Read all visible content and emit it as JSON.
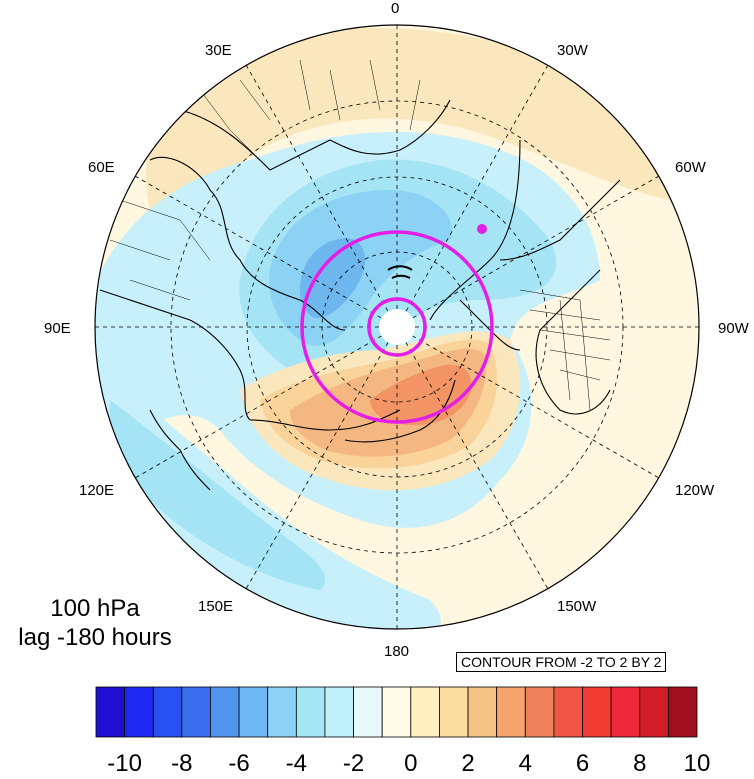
{
  "title": {
    "line1": "100 hPa",
    "line2": "lag -180 hours"
  },
  "contour_info": "CONTOUR FROM -2 TO 2 BY 2",
  "longitude_labels": {
    "lon_0": "0",
    "lon_30w": "30W",
    "lon_60w": "60W",
    "lon_90w": "90W",
    "lon_120w": "120W",
    "lon_150w": "150W",
    "lon_180": "180",
    "lon_150e": "150E",
    "lon_120e": "120E",
    "lon_90e": "90E",
    "lon_60e": "60E",
    "lon_30e": "30E"
  },
  "colorbar": {
    "tick_labels": [
      "-10",
      "-8",
      "-6",
      "-4",
      "-2",
      "0",
      "2",
      "4",
      "6",
      "8",
      "10"
    ],
    "colors": [
      "#1e0fd2",
      "#1e28f0",
      "#2850f0",
      "#3c6ef0",
      "#5096f0",
      "#6eb9f5",
      "#8cd2f5",
      "#a5e6f5",
      "#c0f0fa",
      "#e6fafc",
      "#fffbe6",
      "#fff0c0",
      "#fadca0",
      "#f5c386",
      "#f5a46e",
      "#f0825a",
      "#f05546",
      "#f03c32",
      "#f0283c",
      "#d21e28",
      "#a00f1e"
    ]
  },
  "map_colors": {
    "ocean_bg": "#fff7e0",
    "light_blue": "#c8f0fa",
    "blue": "#a5e4f5",
    "mid_blue": "#8cd2f5",
    "dark_blue": "#6eb6ee",
    "tan": "#fbe7bd",
    "orange1": "#f9d39a",
    "orange2": "#f5b782",
    "orange3": "#f29464",
    "magenta": "#e41ee6"
  }
}
